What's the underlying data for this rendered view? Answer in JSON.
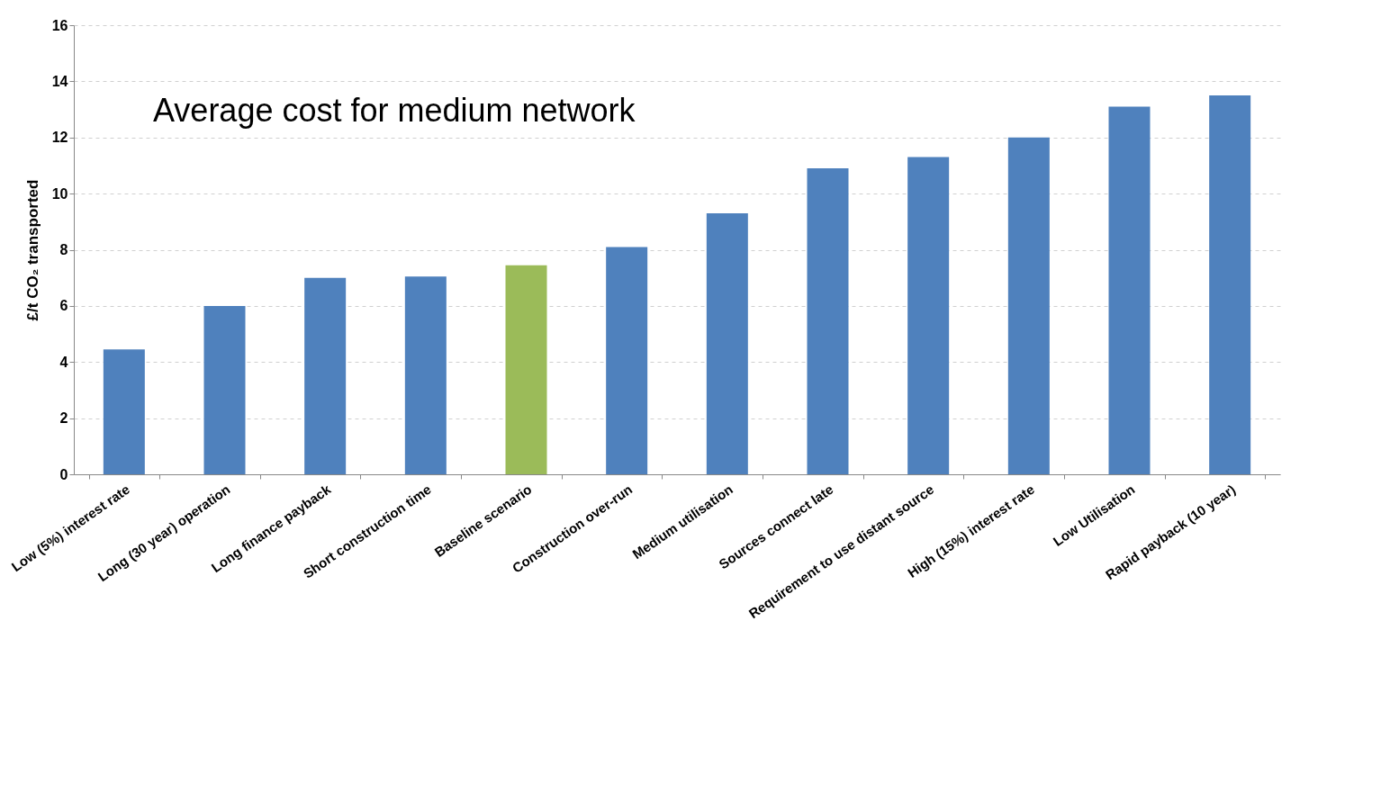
{
  "chart_data": {
    "type": "bar",
    "ylabel": "£/t CO₂ transported",
    "categories": [
      "Low (5%) interest rate",
      "Long (30 year) operation",
      "Long finance payback",
      "Short construction time",
      "Baseline scenario",
      "Construction over-run",
      "Medium utilisation",
      "Sources connect late",
      "Requirement to use distant source",
      "High (15%) interest rate",
      "Low Utilisation",
      "Rapid payback (10 year)"
    ],
    "values": [
      4.45,
      6.0,
      7.0,
      7.05,
      7.45,
      8.1,
      9.3,
      10.9,
      11.3,
      12.0,
      13.1,
      13.5
    ],
    "colors": [
      "#4f81bd",
      "#4f81bd",
      "#4f81bd",
      "#4f81bd",
      "#9bbb59",
      "#4f81bd",
      "#4f81bd",
      "#4f81bd",
      "#4f81bd",
      "#4f81bd",
      "#4f81bd",
      "#4f81bd"
    ],
    "ylim": [
      0,
      16
    ],
    "yticks": [
      0,
      2,
      4,
      6,
      8,
      10,
      12,
      14,
      16
    ],
    "grid": "y",
    "annotations": [
      "Average cost for medium network"
    ]
  }
}
